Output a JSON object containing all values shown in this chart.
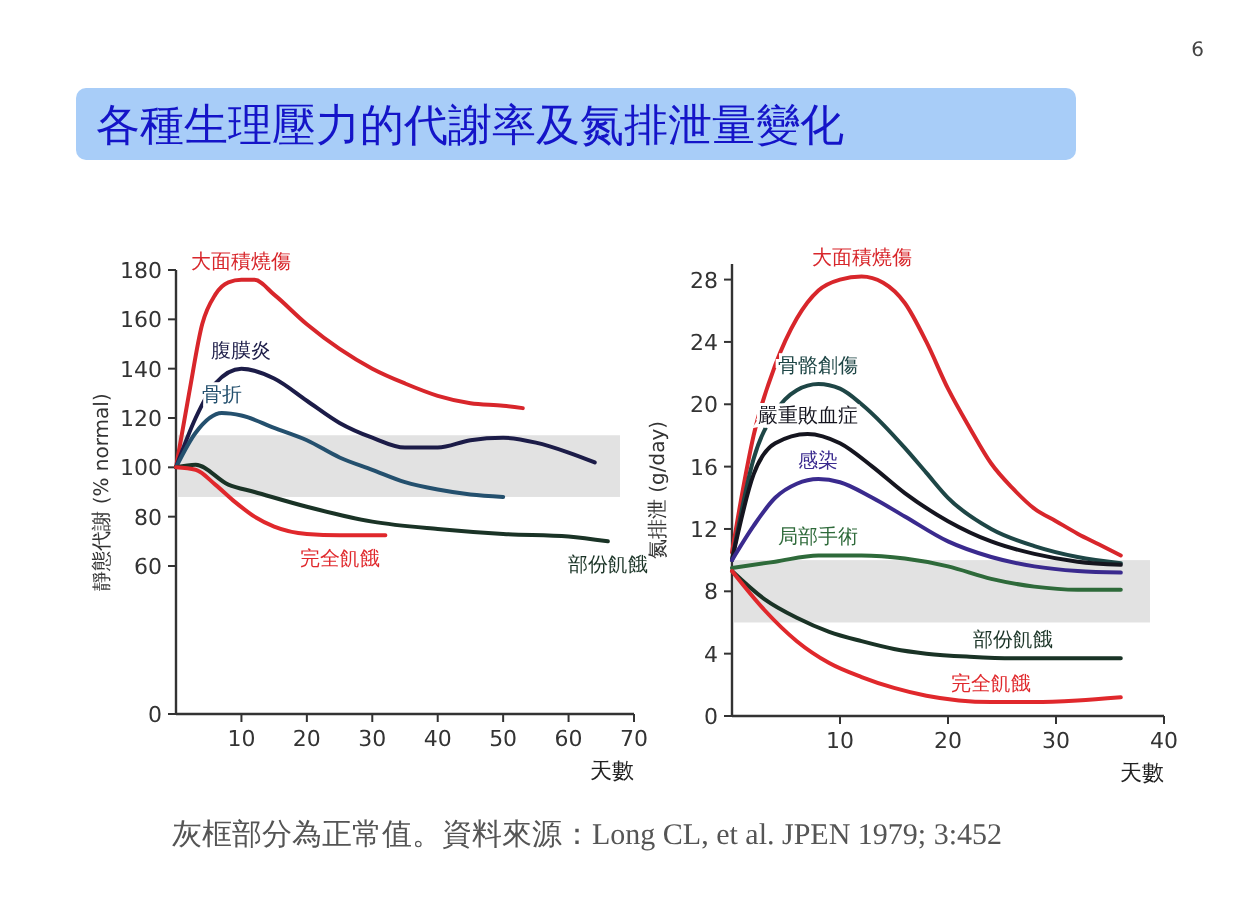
{
  "chart_data": [
    {
      "type": "line",
      "title": "各種生理壓力的代謝率及氮排泄量變化",
      "ylabel": "靜態代謝 (% normal)",
      "xlabel": "天數",
      "xlim": [
        0,
        70
      ],
      "xticks": [
        10,
        20,
        30,
        40,
        50,
        60,
        70
      ],
      "ylim": [
        0,
        180
      ],
      "yticks": [
        0,
        60,
        80,
        100,
        120,
        140,
        160,
        180
      ],
      "grid": false,
      "marker": "none",
      "line_style": "solid",
      "bands": [
        {
          "axis": "y",
          "from": 88,
          "to": 113,
          "color": "#e2e2e2"
        }
      ],
      "series": [
        {
          "name": "大面積燒傷",
          "color": "#d8262b",
          "x": [
            0,
            2,
            4,
            6,
            8,
            10,
            12,
            15,
            20,
            25,
            30,
            35,
            40,
            45,
            50,
            53
          ],
          "values": [
            100,
            130,
            158,
            170,
            175,
            176,
            176,
            170,
            158,
            148,
            140,
            134,
            129,
            126,
            125,
            124
          ]
        },
        {
          "name": "腹膜炎",
          "color": "#1c1c48",
          "x": [
            0,
            3,
            6,
            10,
            15,
            20,
            25,
            30,
            35,
            40,
            45,
            50,
            55,
            60,
            64
          ],
          "values": [
            100,
            120,
            134,
            140,
            136,
            127,
            118,
            112,
            108,
            108,
            111,
            112,
            110,
            106,
            102
          ]
        },
        {
          "name": "骨折",
          "color": "#24506e",
          "x": [
            0,
            3,
            7,
            10,
            15,
            20,
            25,
            30,
            35,
            40,
            45,
            50
          ],
          "values": [
            100,
            114,
            122,
            121,
            116,
            111,
            104,
            99,
            94,
            91,
            89,
            88
          ]
        },
        {
          "name": "部份飢餓",
          "color": "#1a3326",
          "x": [
            0,
            3,
            8,
            12,
            20,
            30,
            40,
            50,
            60,
            66
          ],
          "values": [
            100,
            101,
            93,
            90,
            84,
            78,
            75,
            73,
            72,
            70
          ]
        },
        {
          "name": "完全飢餓",
          "color": "#e0282c",
          "x": [
            0,
            3,
            6,
            9,
            12,
            15,
            20,
            25,
            32
          ],
          "values": [
            100,
            99,
            93,
            86,
            80,
            76,
            73,
            72.5,
            72.5
          ]
        }
      ]
    },
    {
      "type": "line",
      "ylabel": "氮排泄 (g/day)",
      "xlabel": "天數",
      "xlim": [
        0,
        40
      ],
      "xticks": [
        10,
        20,
        30,
        40
      ],
      "ylim": [
        0,
        29
      ],
      "yticks": [
        0,
        4,
        8,
        12,
        16,
        20,
        24,
        28
      ],
      "grid": false,
      "marker": "none",
      "line_style": "solid",
      "annotations": [
        "灰框部分為正常值。資料來源：Long CL, et al. JPEN 1979; 3:452",
        "6"
      ],
      "bands": [
        {
          "axis": "y",
          "from": 6,
          "to": 10,
          "color": "#e2e2e2"
        }
      ],
      "series": [
        {
          "name": "大面積燒傷",
          "color": "#d8262b",
          "x": [
            0,
            1,
            2,
            4,
            6,
            8,
            10,
            12,
            14,
            16,
            18,
            20,
            22,
            24,
            26,
            28,
            30,
            32,
            34,
            36
          ],
          "values": [
            10.5,
            14.5,
            18,
            22.5,
            25.5,
            27.3,
            28,
            28.2,
            27.8,
            26.5,
            24,
            21,
            18.5,
            16.2,
            14.6,
            13.3,
            12.5,
            11.7,
            11,
            10.3
          ]
        },
        {
          "name": "骨骼創傷",
          "color": "#1e4646",
          "x": [
            0,
            2,
            4,
            6,
            8,
            10,
            12,
            14,
            16,
            18,
            20,
            24,
            28,
            32,
            36
          ],
          "values": [
            10,
            16.5,
            19.5,
            20.9,
            21.3,
            21,
            20,
            18.7,
            17.2,
            15.6,
            14,
            12,
            10.9,
            10.2,
            9.8
          ]
        },
        {
          "name": "嚴重敗血症",
          "color": "#15151f",
          "x": [
            0,
            2,
            4,
            7,
            10,
            13,
            16,
            20,
            24,
            28,
            32,
            36
          ],
          "values": [
            10,
            15.5,
            17.5,
            18.1,
            17.5,
            16,
            14.3,
            12.5,
            11.2,
            10.4,
            9.9,
            9.7
          ]
        },
        {
          "name": "感染",
          "color": "#3a2a8e",
          "x": [
            0,
            2,
            4,
            6,
            8,
            10,
            13,
            16,
            20,
            24,
            28,
            32,
            36
          ],
          "values": [
            10,
            12.2,
            14,
            14.9,
            15.2,
            15,
            14,
            12.8,
            11.2,
            10.2,
            9.6,
            9.3,
            9.2
          ]
        },
        {
          "name": "局部手術",
          "color": "#2e6a3a",
          "x": [
            0,
            4,
            8,
            12,
            16,
            20,
            24,
            28,
            32,
            36
          ],
          "values": [
            9.5,
            9.9,
            10.3,
            10.3,
            10.1,
            9.6,
            8.8,
            8.3,
            8.1,
            8.1
          ]
        },
        {
          "name": "部份飢餓",
          "color": "#1a3326",
          "x": [
            0,
            3,
            6,
            9,
            12,
            15,
            18,
            22,
            26,
            30,
            36
          ],
          "values": [
            9.3,
            7.5,
            6.3,
            5.4,
            4.8,
            4.3,
            4,
            3.8,
            3.7,
            3.7,
            3.7
          ]
        },
        {
          "name": "完全飢餓",
          "color": "#e0282c",
          "x": [
            0,
            3,
            6,
            9,
            12,
            15,
            18,
            21,
            24,
            28,
            32,
            36
          ],
          "values": [
            9.3,
            6.8,
            4.8,
            3.4,
            2.5,
            1.8,
            1.3,
            1,
            0.9,
            0.9,
            1,
            1.2
          ]
        }
      ]
    }
  ]
}
